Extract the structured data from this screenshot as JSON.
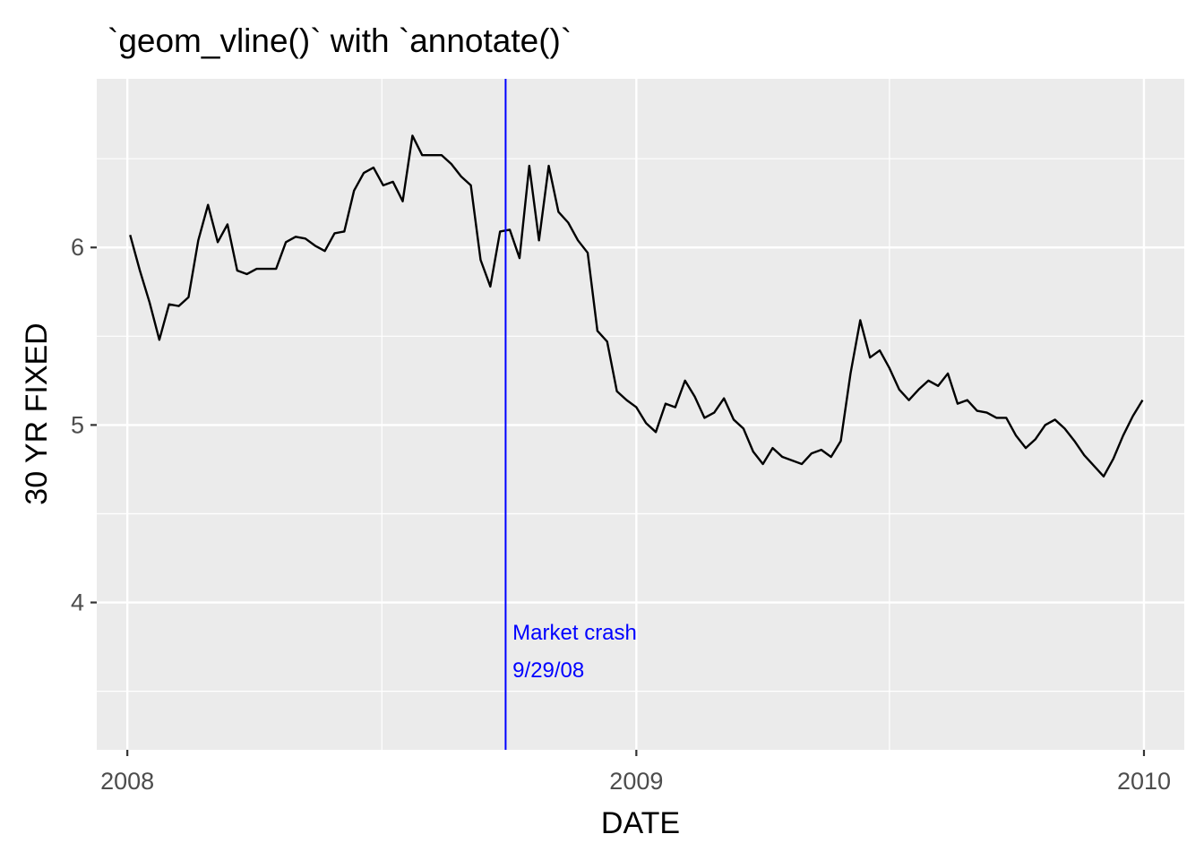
{
  "chart_data": {
    "type": "line",
    "title": "`geom_vline()` with `annotate()`",
    "xlabel": "DATE",
    "ylabel": "30 YR FIXED",
    "x_ticks": [
      "2008",
      "2009",
      "2010"
    ],
    "y_ticks": [
      "4",
      "5",
      "6"
    ],
    "xlim": [
      "2007-12-10",
      "2010-01-30"
    ],
    "ylim": [
      3.17,
      6.95
    ],
    "grid": true,
    "legend": "none",
    "colors": {
      "panel_background": "#ebebeb",
      "grid": "#ffffff",
      "line": "#000000",
      "vline": "#0000ff",
      "annotation": "#0000ff"
    },
    "vline": {
      "x": "2008-09-29"
    },
    "annotation": {
      "x": "2008-10-04",
      "lines": [
        "Market crash",
        "9/29/08"
      ]
    },
    "series": [
      {
        "x": [
          "2008-01-03",
          "2008-01-10",
          "2008-01-17",
          "2008-01-24",
          "2008-01-31",
          "2008-02-07",
          "2008-02-14",
          "2008-02-21",
          "2008-02-28",
          "2008-03-06",
          "2008-03-13",
          "2008-03-20",
          "2008-03-27",
          "2008-04-03",
          "2008-04-10",
          "2008-04-17",
          "2008-04-24",
          "2008-05-01",
          "2008-05-08",
          "2008-05-15",
          "2008-05-22",
          "2008-05-29",
          "2008-06-05",
          "2008-06-12",
          "2008-06-19",
          "2008-06-26",
          "2008-07-03",
          "2008-07-10",
          "2008-07-17",
          "2008-07-24",
          "2008-07-31",
          "2008-08-07",
          "2008-08-14",
          "2008-08-21",
          "2008-08-28",
          "2008-09-04",
          "2008-09-11",
          "2008-09-18",
          "2008-09-25",
          "2008-10-02",
          "2008-10-09",
          "2008-10-16",
          "2008-10-23",
          "2008-10-30",
          "2008-11-06",
          "2008-11-13",
          "2008-11-20",
          "2008-11-27",
          "2008-12-04",
          "2008-12-11",
          "2008-12-18",
          "2008-12-25",
          "2009-01-01",
          "2009-01-08",
          "2009-01-15",
          "2009-01-22",
          "2009-01-29",
          "2009-02-05",
          "2009-02-12",
          "2009-02-19",
          "2009-02-26",
          "2009-03-05",
          "2009-03-12",
          "2009-03-19",
          "2009-03-26",
          "2009-04-02",
          "2009-04-09",
          "2009-04-16",
          "2009-04-23",
          "2009-04-30",
          "2009-05-07",
          "2009-05-14",
          "2009-05-21",
          "2009-05-28",
          "2009-06-04",
          "2009-06-11",
          "2009-06-18",
          "2009-06-25",
          "2009-07-02",
          "2009-07-09",
          "2009-07-16",
          "2009-07-23",
          "2009-07-30",
          "2009-08-06",
          "2009-08-13",
          "2009-08-20",
          "2009-08-27",
          "2009-09-03",
          "2009-09-10",
          "2009-09-17",
          "2009-09-24",
          "2009-10-01",
          "2009-10-08",
          "2009-10-15",
          "2009-10-22",
          "2009-10-29",
          "2009-11-05",
          "2009-11-12",
          "2009-11-19",
          "2009-11-26",
          "2009-12-03",
          "2009-12-10",
          "2009-12-17",
          "2009-12-24",
          "2009-12-31"
        ],
        "values": [
          6.07,
          5.87,
          5.69,
          5.48,
          5.68,
          5.67,
          5.72,
          6.04,
          6.24,
          6.03,
          6.13,
          5.87,
          5.85,
          5.88,
          5.88,
          5.88,
          6.03,
          6.06,
          6.05,
          6.01,
          5.98,
          6.08,
          6.09,
          6.32,
          6.42,
          6.45,
          6.35,
          6.37,
          6.26,
          6.63,
          6.52,
          6.52,
          6.52,
          6.47,
          6.4,
          6.35,
          5.93,
          5.78,
          6.09,
          6.1,
          5.94,
          6.46,
          6.04,
          6.46,
          6.2,
          6.14,
          6.04,
          5.97,
          5.53,
          5.47,
          5.19,
          5.14,
          5.1,
          5.01,
          4.96,
          5.12,
          5.1,
          5.25,
          5.16,
          5.04,
          5.07,
          5.15,
          5.03,
          4.98,
          4.85,
          4.78,
          4.87,
          4.82,
          4.8,
          4.78,
          4.84,
          4.86,
          4.82,
          4.91,
          5.29,
          5.59,
          5.38,
          5.42,
          5.32,
          5.2,
          5.14,
          5.2,
          5.25,
          5.22,
          5.29,
          5.12,
          5.14,
          5.08,
          5.07,
          5.04,
          5.04,
          4.94,
          4.87,
          4.92,
          5.0,
          5.03,
          4.98,
          4.91,
          4.83,
          4.77,
          4.71,
          4.81,
          4.94,
          5.05,
          5.14
        ]
      }
    ]
  }
}
